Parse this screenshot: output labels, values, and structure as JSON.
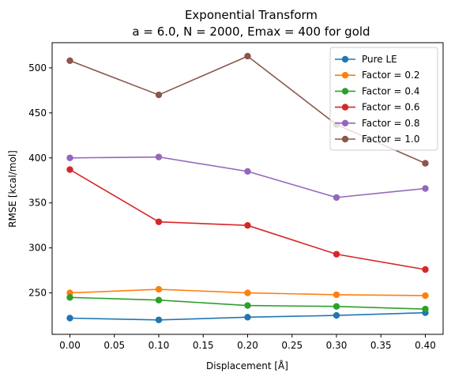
{
  "chart_data": {
    "type": "line",
    "title_line1": "Exponential Transform",
    "title_line2": "a = 6.0, N = 2000, Emax = 400 for gold",
    "xlabel": "Displacement [Å]",
    "ylabel": "RMSE [kcal/mol]",
    "xlim": [
      -0.02,
      0.42
    ],
    "ylim": [
      204,
      528
    ],
    "xticks": [
      "0.00",
      "0.05",
      "0.10",
      "0.15",
      "0.20",
      "0.25",
      "0.30",
      "0.35",
      "0.40"
    ],
    "xtick_values": [
      0.0,
      0.05,
      0.1,
      0.15,
      0.2,
      0.25,
      0.3,
      0.35,
      0.4
    ],
    "yticks": [
      "250",
      "300",
      "350",
      "400",
      "450",
      "500"
    ],
    "ytick_values": [
      250,
      300,
      350,
      400,
      450,
      500
    ],
    "grid": false,
    "legend_position": "top-right",
    "x": [
      0.0,
      0.1,
      0.2,
      0.3,
      0.4
    ],
    "series": [
      {
        "name": "Pure LE",
        "color": "#1f77b4",
        "values": [
          222,
          220,
          223,
          225,
          228
        ]
      },
      {
        "name": "Factor = 0.2",
        "color": "#ff7f0e",
        "values": [
          250,
          254,
          250,
          248,
          247
        ]
      },
      {
        "name": "Factor = 0.4",
        "color": "#2ca02c",
        "values": [
          245,
          242,
          236,
          235,
          232
        ]
      },
      {
        "name": "Factor = 0.6",
        "color": "#d62728",
        "values": [
          387,
          329,
          325,
          293,
          276
        ]
      },
      {
        "name": "Factor = 0.8",
        "color": "#9467bd",
        "values": [
          400,
          401,
          385,
          356,
          366
        ]
      },
      {
        "name": "Factor = 1.0",
        "color": "#8c564b",
        "values": [
          508,
          470,
          513,
          437,
          394
        ]
      }
    ]
  }
}
